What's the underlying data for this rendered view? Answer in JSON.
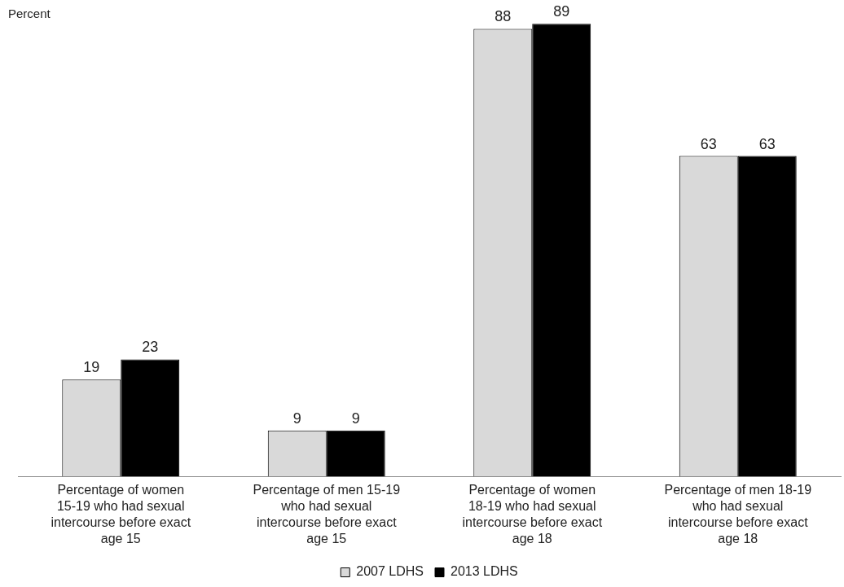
{
  "chart_data": {
    "type": "bar",
    "ylabel": "Percent",
    "categories": [
      "Percentage of women 15-19 who had sexual intercourse before exact age 15",
      "Percentage of men 15-19 who had sexual intercourse before exact age 15",
      "Percentage of women 18-19 who had sexual intercourse before exact age 18",
      "Percentage of men 18-19 who had sexual intercourse before exact age 18"
    ],
    "series": [
      {
        "name": "2007 LDHS",
        "color": "#d9d9d9",
        "values": [
          19,
          9,
          88,
          63
        ]
      },
      {
        "name": "2013 LDHS",
        "color": "#000000",
        "values": [
          23,
          9,
          89,
          63
        ]
      }
    ],
    "tick_labels": "x",
    "data_labels": true,
    "grid": false,
    "legend": "bottom"
  }
}
